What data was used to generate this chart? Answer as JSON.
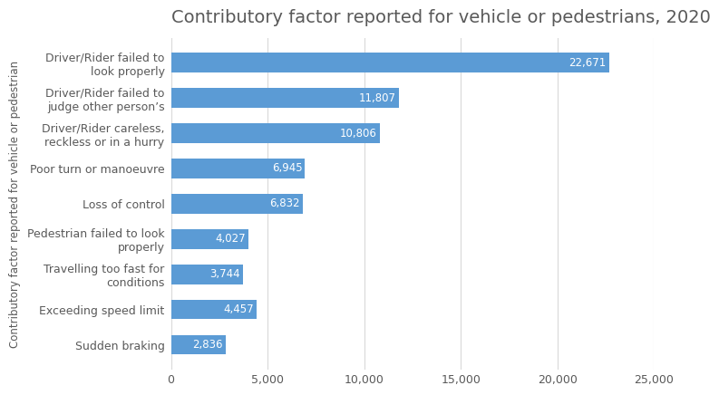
{
  "title": "Contributory factor reported for vehicle or pedestrians, 2020",
  "ylabel": "Contributory factor reported for vehicle or pedestrian",
  "categories": [
    "Sudden braking",
    "Exceeding speed limit",
    "Travelling too fast for\nconditions",
    "Pedestrian failed to look\nproperly",
    "Loss of control",
    "Poor turn or manoeuvre",
    "Driver/Rider careless,\nreckless or in a hurry",
    "Driver/Rider failed to\njudge other person’s",
    "Driver/Rider failed to\nlook properly"
  ],
  "values": [
    2836,
    4457,
    3744,
    4027,
    6832,
    6945,
    10806,
    11807,
    22671
  ],
  "bar_color": "#5B9BD5",
  "value_labels": [
    "2,836",
    "4,457",
    "3,744",
    "4,027",
    "6,832",
    "6,945",
    "10,806",
    "11,807",
    "22,671"
  ],
  "xlim": [
    0,
    25000
  ],
  "xticks": [
    0,
    5000,
    10000,
    15000,
    20000,
    25000
  ],
  "xtick_labels": [
    "0",
    "5,000",
    "10,000",
    "15,000",
    "20,000",
    "25,000"
  ],
  "title_fontsize": 14,
  "title_color": "#595959",
  "label_fontsize": 8.5,
  "tick_fontsize": 9,
  "ylabel_fontsize": 8.5,
  "background_color": "#ffffff",
  "grid_color": "#d9d9d9"
}
